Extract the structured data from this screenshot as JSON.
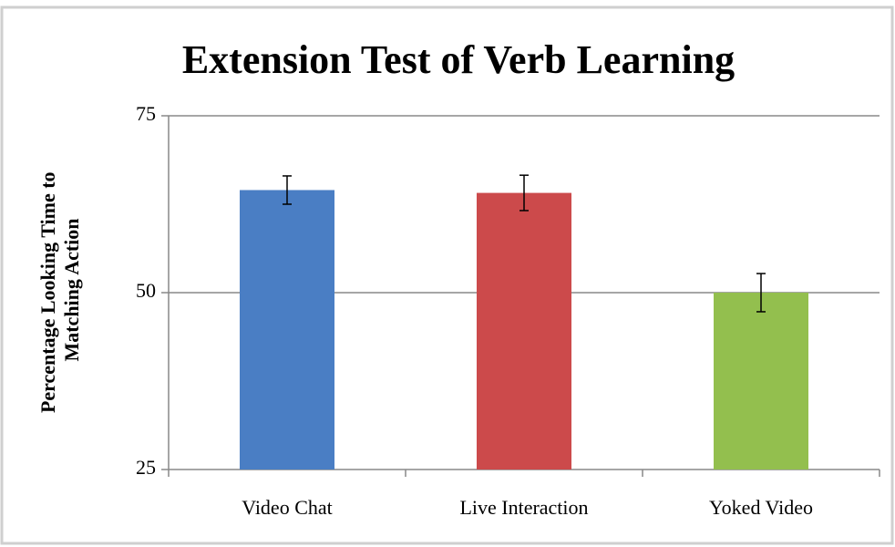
{
  "chart_data": {
    "type": "bar",
    "title": "Extension Test of Verb Learning",
    "ylabel": [
      "Percentage Looking Time to",
      "Matching Action"
    ],
    "categories": [
      "Video Chat",
      "Live Interaction",
      "Yoked Video"
    ],
    "values": [
      64.5,
      64.1,
      50
    ],
    "errors": [
      2,
      2.5,
      2.7
    ],
    "colors": [
      "#4a7ec4",
      "#cc4a4b",
      "#93bf4e"
    ],
    "ylim": [
      25,
      75
    ],
    "yticks": [
      25,
      50,
      75
    ],
    "grid": true
  }
}
